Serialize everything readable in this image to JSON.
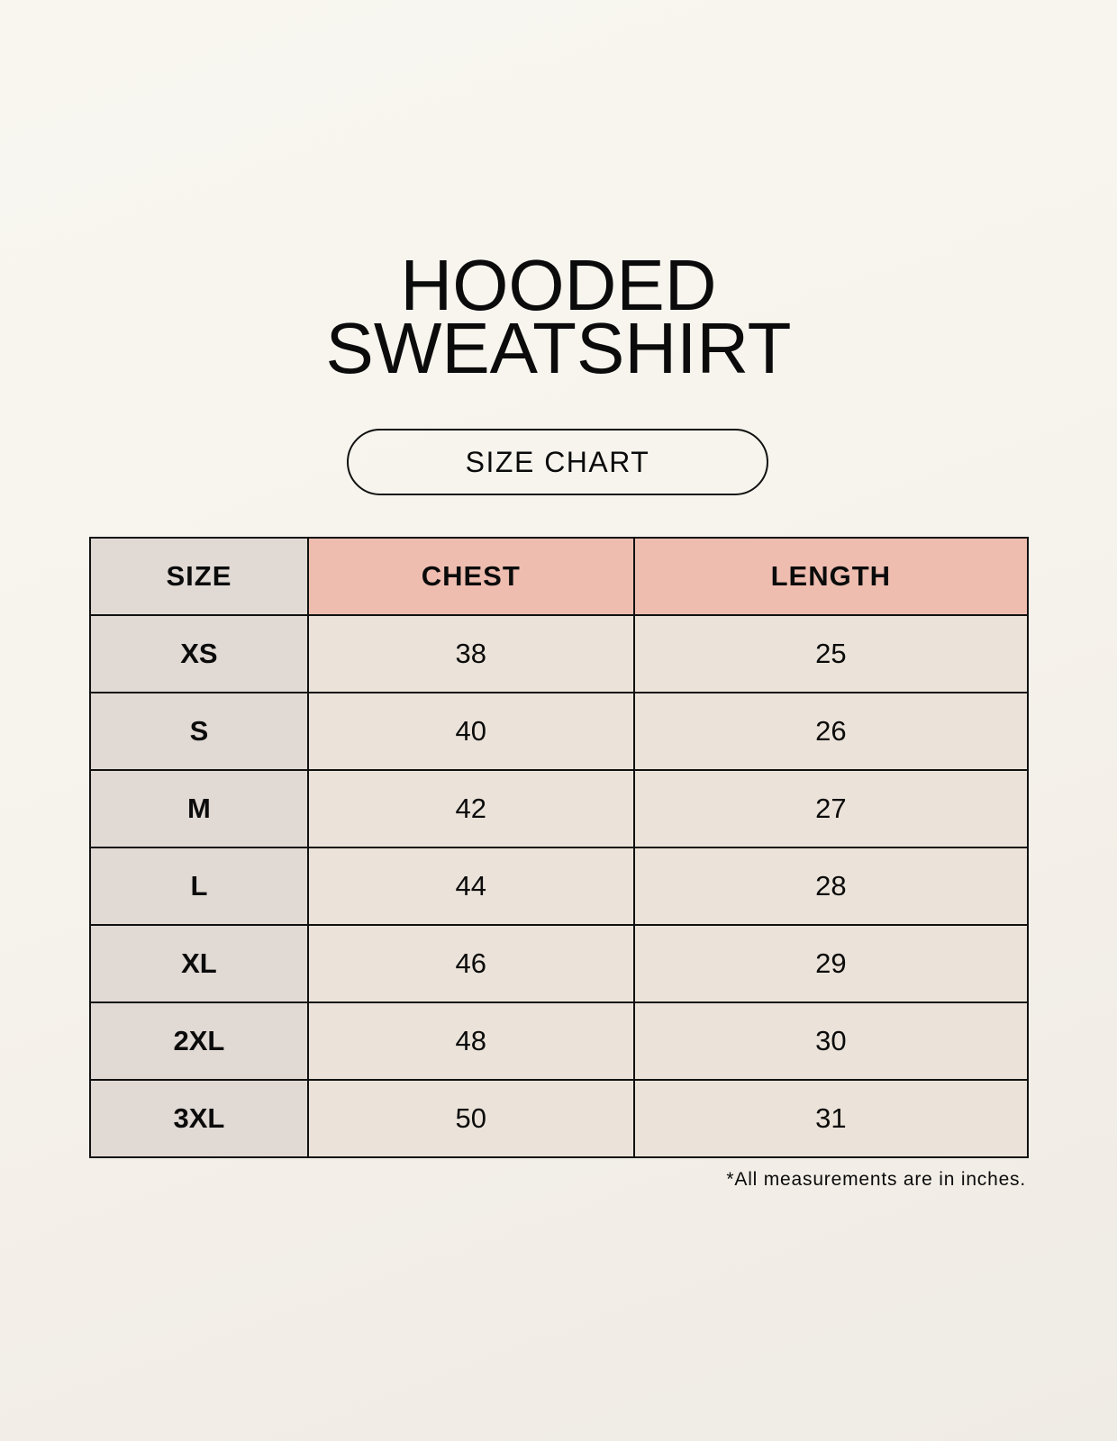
{
  "title": {
    "line1": "HOODED",
    "line2": "SWEATSHIRT"
  },
  "subtitle": "SIZE CHART",
  "table": {
    "headers": [
      "SIZE",
      "CHEST",
      "LENGTH"
    ],
    "rows": [
      [
        "XS",
        "38",
        "25"
      ],
      [
        "S",
        "40",
        "26"
      ],
      [
        "M",
        "42",
        "27"
      ],
      [
        "L",
        "44",
        "28"
      ],
      [
        "XL",
        "46",
        "29"
      ],
      [
        "2XL",
        "48",
        "30"
      ],
      [
        "3XL",
        "50",
        "31"
      ]
    ]
  },
  "footnote": "*All measurements are in inches.",
  "colors": {
    "size_column": "#e1d9d4",
    "header_accent": "#eebdb0",
    "value_cells": "#ebe3d9"
  }
}
